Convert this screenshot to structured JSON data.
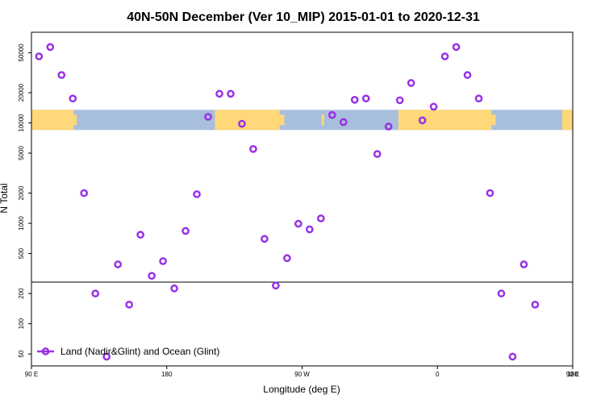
{
  "chart_data": {
    "type": "scatter",
    "title": "40N-50N December (Ver 10_MIP)   2015-01-01 to 2020-12-31",
    "xlabel": "Longitude (deg E)",
    "ylabel": "N Total",
    "y_scale": "log",
    "xlim": [
      90,
      450
    ],
    "ylim": [
      38,
      80000
    ],
    "x_ticks": [
      {
        "value": 90,
        "label": "90 E"
      },
      {
        "value": 180,
        "label": "180"
      },
      {
        "value": 270,
        "label": "90 W"
      },
      {
        "value": 360,
        "label": "0"
      },
      {
        "value": 450,
        "label": "90 E"
      },
      {
        "value": 540,
        "label": "180"
      }
    ],
    "y_ticks": [
      {
        "value": 50,
        "label": "50"
      },
      {
        "value": 100,
        "label": "100"
      },
      {
        "value": 200,
        "label": "200"
      },
      {
        "value": 500,
        "label": "500"
      },
      {
        "value": 1000,
        "label": "1000"
      },
      {
        "value": 2000,
        "label": "2000"
      },
      {
        "value": 5000,
        "label": "5000"
      },
      {
        "value": 10000,
        "label": "10000"
      },
      {
        "value": 20000,
        "label": "20000"
      },
      {
        "value": 50000,
        "label": "50000"
      }
    ],
    "reference_line_y": 260,
    "map_band": {
      "lat_range": "40N-50N",
      "y_range": [
        8500,
        13500
      ],
      "land_color": "#FFD87A",
      "ocean_color": "#A8BEDD"
    },
    "legend": {
      "position": "bottom-left",
      "entries": [
        "Land (Nadir&Glint) and Ocean (Glint)"
      ]
    },
    "series": [
      {
        "name": "Land (Nadir&Glint) and Ocean (Glint)",
        "color": "#9932E6",
        "points": [
          {
            "x": 95,
            "y": 46000
          },
          {
            "x": 102.5,
            "y": 57000
          },
          {
            "x": 110,
            "y": 30000
          },
          {
            "x": 117.5,
            "y": 17500
          },
          {
            "x": 125,
            "y": 2000
          },
          {
            "x": 132.5,
            "y": 200
          },
          {
            "x": 140,
            "y": 47
          },
          {
            "x": 147.5,
            "y": 390
          },
          {
            "x": 155,
            "y": 155
          },
          {
            "x": 162.5,
            "y": 770
          },
          {
            "x": 170,
            "y": 300
          },
          {
            "x": 177.5,
            "y": 420
          },
          {
            "x": 185,
            "y": 225
          },
          {
            "x": 192.5,
            "y": 840
          },
          {
            "x": 200,
            "y": 1950
          },
          {
            "x": 207.5,
            "y": 11500
          },
          {
            "x": 215,
            "y": 19500
          },
          {
            "x": 222.5,
            "y": 19500
          },
          {
            "x": 230,
            "y": 9800
          },
          {
            "x": 237.5,
            "y": 5500
          },
          {
            "x": 245,
            "y": 700
          },
          {
            "x": 252.5,
            "y": 240
          },
          {
            "x": 260,
            "y": 450
          },
          {
            "x": 267.5,
            "y": 990
          },
          {
            "x": 275,
            "y": 870
          },
          {
            "x": 282.5,
            "y": 1120
          },
          {
            "x": 290,
            "y": 12000
          },
          {
            "x": 297.5,
            "y": 10200
          },
          {
            "x": 305,
            "y": 17000
          },
          {
            "x": 312.5,
            "y": 17500
          },
          {
            "x": 320,
            "y": 4900
          },
          {
            "x": 327.5,
            "y": 9200
          },
          {
            "x": 335,
            "y": 16800
          },
          {
            "x": 342.5,
            "y": 25000
          },
          {
            "x": 350,
            "y": 10600
          },
          {
            "x": 357.5,
            "y": 14500
          },
          {
            "x": 365,
            "y": 46000
          },
          {
            "x": 372.5,
            "y": 57000
          },
          {
            "x": 380,
            "y": 30000
          },
          {
            "x": 387.5,
            "y": 17500
          },
          {
            "x": 395,
            "y": 2000
          },
          {
            "x": 402.5,
            "y": 200
          },
          {
            "x": 410,
            "y": 47
          },
          {
            "x": 417.5,
            "y": 390
          },
          {
            "x": 425,
            "y": 155
          }
        ]
      }
    ]
  }
}
